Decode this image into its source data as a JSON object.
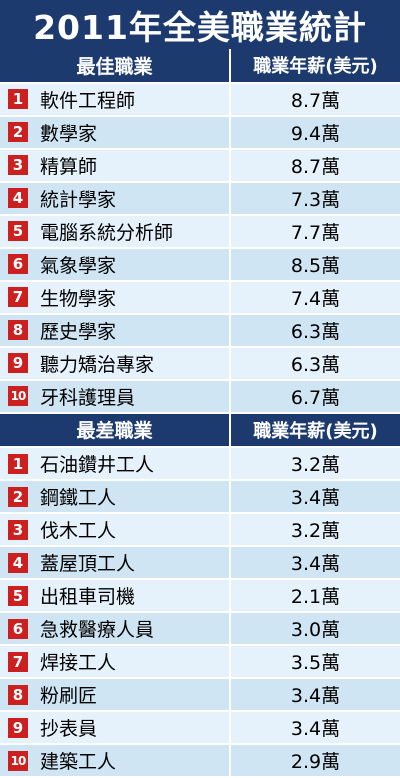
{
  "title": "2011年全美職業統計",
  "best": {
    "header": "最佳職業",
    "salary_header": "職業年薪(美元)",
    "rows": [
      {
        "rank": "1",
        "job": "軟件工程師",
        "salary": "8.7萬"
      },
      {
        "rank": "2",
        "job": "數學家",
        "salary": "9.4萬"
      },
      {
        "rank": "3",
        "job": "精算師",
        "salary": "8.7萬"
      },
      {
        "rank": "4",
        "job": "統計學家",
        "salary": "7.3萬"
      },
      {
        "rank": "5",
        "job": "電腦系統分析師",
        "salary": "7.7萬"
      },
      {
        "rank": "6",
        "job": "氣象學家",
        "salary": "8.5萬"
      },
      {
        "rank": "7",
        "job": "生物學家",
        "salary": "7.4萬"
      },
      {
        "rank": "8",
        "job": "歷史學家",
        "salary": "6.3萬"
      },
      {
        "rank": "9",
        "job": "聽力矯治專家",
        "salary": "6.3萬"
      },
      {
        "rank": "10",
        "job": "牙科護理員",
        "salary": "6.7萬"
      }
    ]
  },
  "worst": {
    "header": "最差職業",
    "salary_header": "職業年薪(美元)",
    "rows": [
      {
        "rank": "1",
        "job": "石油鑽井工人",
        "salary": "3.2萬"
      },
      {
        "rank": "2",
        "job": "鋼鐵工人",
        "salary": "3.4萬"
      },
      {
        "rank": "3",
        "job": "伐木工人",
        "salary": "3.2萬"
      },
      {
        "rank": "4",
        "job": "蓋屋頂工人",
        "salary": "3.4萬"
      },
      {
        "rank": "5",
        "job": "出租車司機",
        "salary": "2.1萬"
      },
      {
        "rank": "6",
        "job": "急救醫療人員",
        "salary": "3.0萬"
      },
      {
        "rank": "7",
        "job": "焊接工人",
        "salary": "3.5萬"
      },
      {
        "rank": "8",
        "job": "粉刷匠",
        "salary": "3.4萬"
      },
      {
        "rank": "9",
        "job": "抄表員",
        "salary": "3.4萬"
      },
      {
        "rank": "10",
        "job": "建築工人",
        "salary": "2.9萬"
      }
    ]
  },
  "colors": {
    "header_bg": "#1c3a6e",
    "rank_badge": "#cc1f1f",
    "row_light": "#e6f2fb",
    "row_dark": "#cfe5f4"
  }
}
